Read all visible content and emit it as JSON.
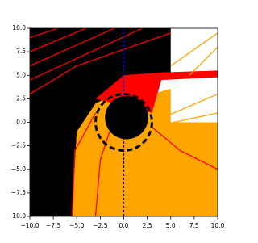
{
  "chart_data": {
    "type": "line",
    "xlim": [
      -10,
      10
    ],
    "ylim": [
      -10,
      10
    ],
    "xticks": [
      {
        "value": -10,
        "label": "−10.0"
      },
      {
        "value": -7.5,
        "label": "−7.5"
      },
      {
        "value": -5,
        "label": "−5.0"
      },
      {
        "value": -2.5,
        "label": "−2.5"
      },
      {
        "value": 0,
        "label": "0.0"
      },
      {
        "value": 2.5,
        "label": "2.5"
      },
      {
        "value": 5,
        "label": "5.0"
      },
      {
        "value": 7.5,
        "label": "7.5"
      },
      {
        "value": 10,
        "label": "10.0"
      }
    ],
    "yticks": [
      {
        "value": -10,
        "label": "−10.0"
      },
      {
        "value": -7.5,
        "label": "−7.5"
      },
      {
        "value": -5,
        "label": "−5.0"
      },
      {
        "value": -2.5,
        "label": "−2.5"
      },
      {
        "value": 0,
        "label": "0.0"
      },
      {
        "value": 2.5,
        "label": "2.5"
      },
      {
        "value": 5,
        "label": "5.0"
      },
      {
        "value": 7.5,
        "label": "7.5"
      },
      {
        "value": 10,
        "label": "10.0"
      }
    ],
    "series": [
      {
        "color": "#000000",
        "fill": true,
        "x": [
          -10,
          -10,
          5,
          5,
          1,
          -3,
          -5,
          -5.5
        ],
        "y": [
          -10,
          10,
          10,
          5,
          4,
          2,
          -1,
          -10
        ]
      },
      {
        "color": "#ffa500",
        "fill": true,
        "x": [
          -5.5,
          -5,
          -3,
          -1,
          3,
          10,
          10
        ],
        "y": [
          -10,
          -1,
          2,
          3,
          3,
          5,
          -10
        ]
      },
      {
        "color": "#ffffff",
        "fill": true,
        "x": [
          5,
          10,
          10,
          5
        ],
        "y": [
          0,
          0,
          4.8,
          4.8
        ]
      },
      {
        "color": "#ff0000",
        "fill": true,
        "x": [
          -3,
          0,
          4,
          10,
          10,
          4,
          3,
          -1
        ],
        "y": [
          2.5,
          5,
          5.3,
          5.5,
          4.8,
          4.5,
          1,
          2
        ]
      },
      {
        "color": "#ff0000",
        "x": [
          -10,
          -7
        ],
        "y": [
          9,
          10
        ]
      },
      {
        "color": "#ff0000",
        "x": [
          -10,
          -4
        ],
        "y": [
          7.5,
          10
        ]
      },
      {
        "color": "#ff0000",
        "x": [
          -10,
          -1
        ],
        "y": [
          6,
          10
        ]
      },
      {
        "color": "#ff0000",
        "x": [
          -10,
          2
        ],
        "y": [
          4.5,
          10
        ]
      },
      {
        "color": "#ff0000",
        "x": [
          -10,
          -5,
          5
        ],
        "y": [
          3,
          6,
          9.5
        ]
      },
      {
        "color": "#ff0000",
        "x": [
          -5.5,
          -5.2,
          -3
        ],
        "y": [
          -10,
          -3,
          1
        ]
      },
      {
        "color": "#ff0000",
        "x": [
          3,
          6,
          10
        ],
        "y": [
          -0.5,
          -3,
          -5
        ]
      },
      {
        "color": "#ff0000",
        "x": [
          -3,
          -2.5,
          -1.5
        ],
        "y": [
          -10,
          -4,
          -1
        ]
      },
      {
        "color": "#ffa500",
        "x": [
          5,
          10
        ],
        "y": [
          6,
          9.5
        ]
      },
      {
        "color": "#ffa500",
        "x": [
          7,
          10
        ],
        "y": [
          5,
          8
        ]
      },
      {
        "color": "#ffa500",
        "x": [
          3,
          10
        ],
        "y": [
          0,
          3
        ]
      },
      {
        "color": "#ffa500",
        "x": [
          3,
          10
        ],
        "y": [
          -0.5,
          1
        ]
      },
      {
        "color": "#000000",
        "x": [
          -10,
          -6
        ],
        "y": [
          -2,
          -9
        ]
      },
      {
        "color": "#000000",
        "x": [
          -10,
          -7
        ],
        "y": [
          -5,
          -10
        ]
      },
      {
        "color": "#0000ff",
        "dashed": true,
        "x": [
          0,
          0
        ],
        "y": [
          -10,
          10
        ]
      }
    ],
    "circles": [
      {
        "color": "#000000",
        "fill": true,
        "cx": 0.3,
        "cy": 0.5,
        "r": 2.3
      },
      {
        "color": "#000000",
        "dashed": true,
        "cx": 0,
        "cy": 0,
        "r": 3
      }
    ]
  }
}
